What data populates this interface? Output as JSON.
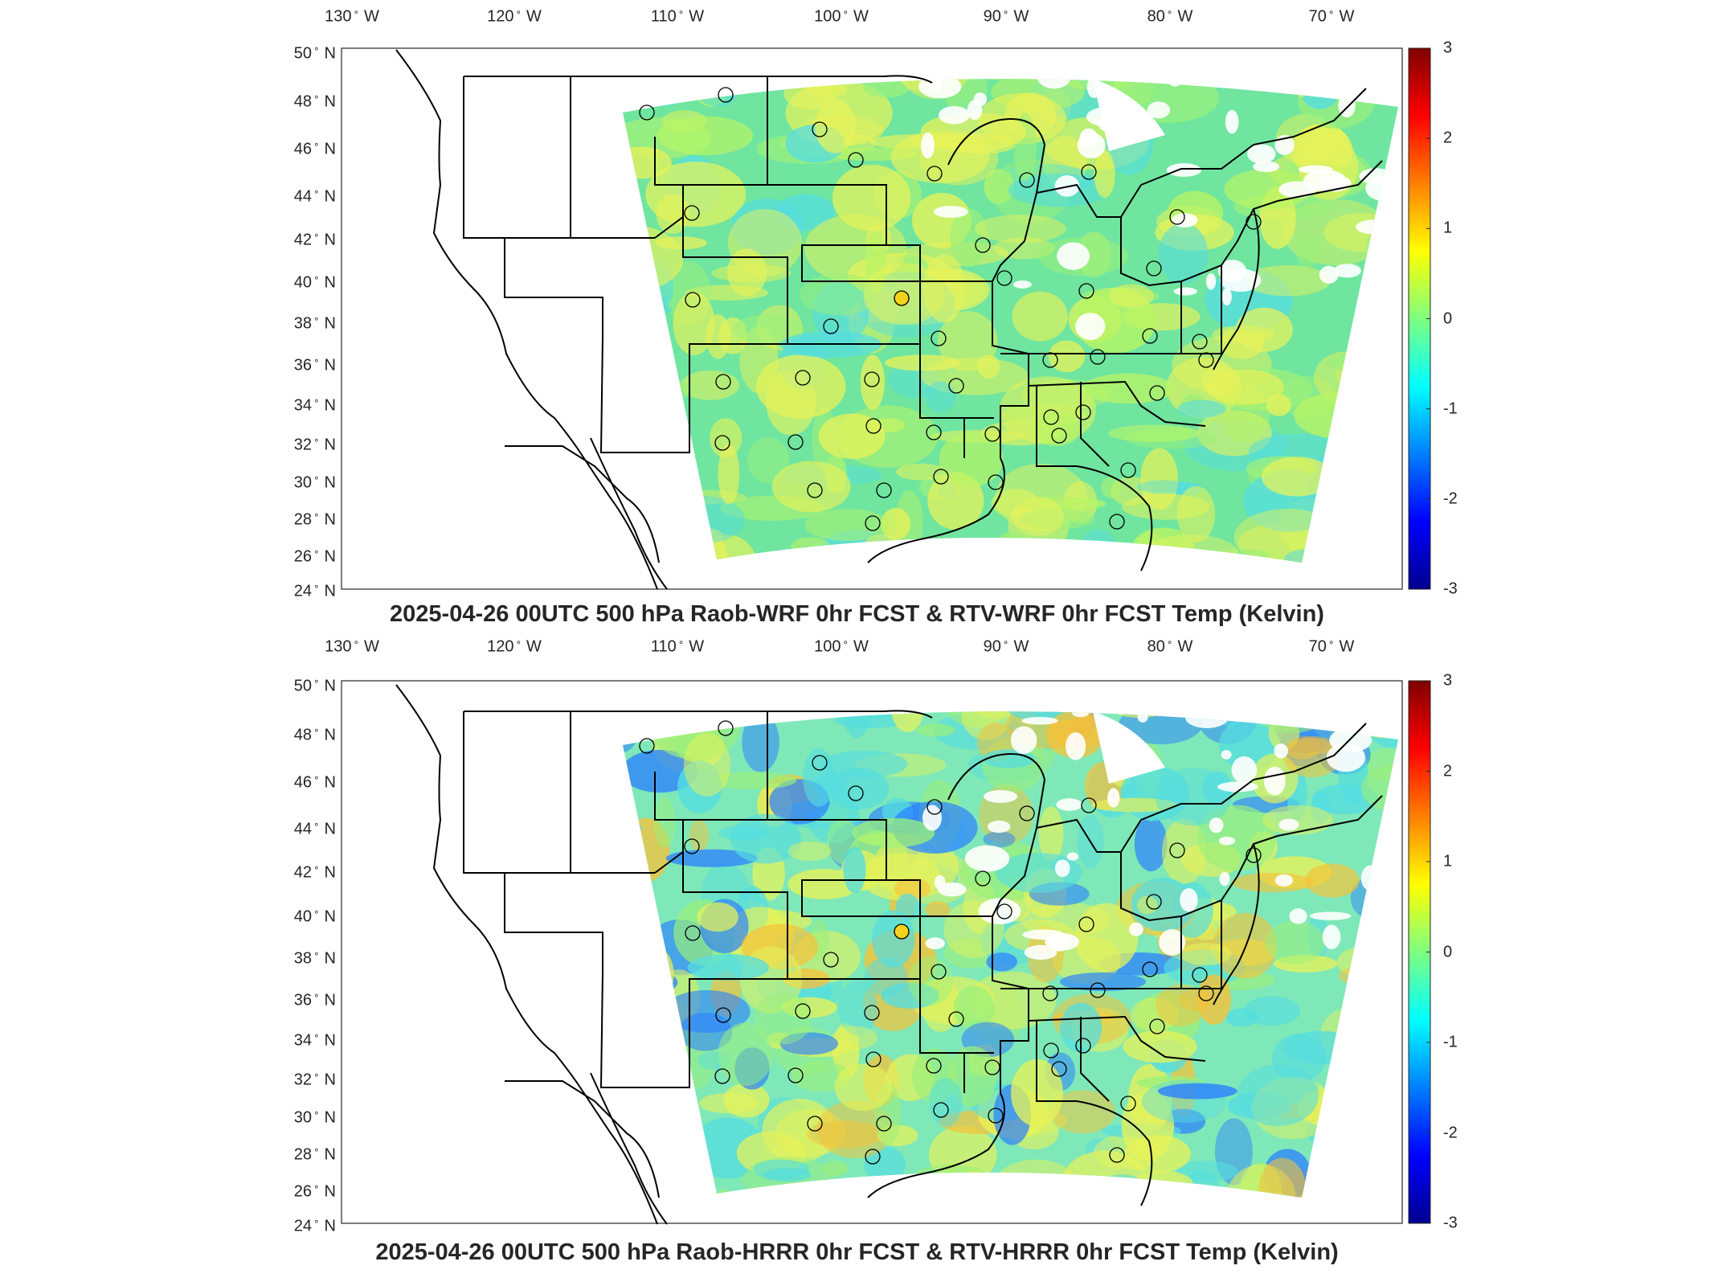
{
  "panels": [
    {
      "title": "2025-04-26 00UTC 500 hPa Raob-WRF 0hr FCST & RTV-WRF 0hr FCST Temp (Kelvin)",
      "lon_labels": [
        "130",
        "120",
        "110",
        "100",
        "90",
        "80",
        "70"
      ],
      "lon_suffix": "W",
      "lat_labels": [
        "50",
        "48",
        "46",
        "44",
        "42",
        "40",
        "38",
        "36",
        "34",
        "32",
        "30",
        "28",
        "26",
        "24"
      ],
      "lat_suffix": "N",
      "colorbar_ticks": [
        "3",
        "2",
        "1",
        "0",
        "-1",
        "-2",
        "-3"
      ]
    },
    {
      "title": "2025-04-26 00UTC 500 hPa Raob-HRRR 0hr FCST & RTV-HRRR 0hr FCST Temp (Kelvin)",
      "lon_labels": [
        "130",
        "120",
        "110",
        "100",
        "90",
        "80",
        "70"
      ],
      "lon_suffix": "W",
      "lat_labels": [
        "50",
        "48",
        "46",
        "44",
        "42",
        "40",
        "38",
        "36",
        "34",
        "32",
        "30",
        "28",
        "26",
        "24"
      ],
      "lat_suffix": "N",
      "colorbar_ticks": [
        "3",
        "2",
        "1",
        "0",
        "-1",
        "-2",
        "-3"
      ]
    }
  ],
  "colorbar": {
    "min": -3,
    "max": 3,
    "colors": [
      "#00008f",
      "#0000ff",
      "#007fff",
      "#00ffff",
      "#7fff7f",
      "#ffff00",
      "#ff7f00",
      "#ff0000",
      "#7f0000"
    ]
  },
  "field_colors": {
    "wrf_base": "#6fe5a0",
    "hrrr_base": "#7fe8b8",
    "warm": "#e6f25a",
    "warmer": "#f5c23a",
    "cool": "#55dde0",
    "cold": "#2a7fff"
  }
}
